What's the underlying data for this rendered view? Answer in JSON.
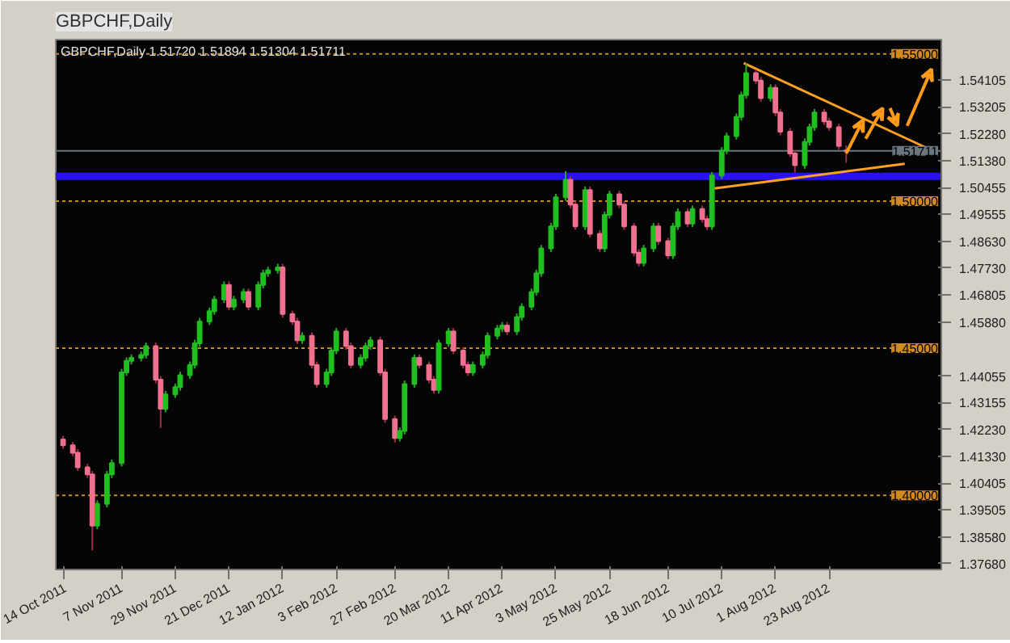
{
  "chart_data": {
    "type": "candlestick",
    "title": "GBPCHF,Daily",
    "subtitle": "GBPCHF,Daily  1.51720 1.51894 1.51304 1.51711",
    "x": [
      "2011-10-14",
      "2011-10-18",
      "2011-10-20",
      "2011-10-24",
      "2011-10-26",
      "2011-10-28",
      "2011-11-01",
      "2011-11-03",
      "2011-11-07",
      "2011-11-09",
      "2011-11-11",
      "2011-11-15",
      "2011-11-17",
      "2011-11-21",
      "2011-11-23",
      "2011-11-25",
      "2011-11-29",
      "2011-12-01",
      "2011-12-05",
      "2011-12-07",
      "2011-12-09",
      "2011-12-13",
      "2011-12-15",
      "2011-12-19",
      "2011-12-21",
      "2011-12-23",
      "2011-12-27",
      "2011-12-29",
      "2012-01-02",
      "2012-01-04",
      "2012-01-06",
      "2012-01-10",
      "2012-01-12",
      "2012-01-16",
      "2012-01-18",
      "2012-01-20",
      "2012-01-24",
      "2012-01-26",
      "2012-01-30",
      "2012-02-01",
      "2012-02-03",
      "2012-02-07",
      "2012-02-09",
      "2012-02-13",
      "2012-02-15",
      "2012-02-17",
      "2012-02-21",
      "2012-02-23",
      "2012-02-27",
      "2012-02-29",
      "2012-03-02",
      "2012-03-06",
      "2012-03-08",
      "2012-03-12",
      "2012-03-14",
      "2012-03-16",
      "2012-03-20",
      "2012-03-22",
      "2012-03-26",
      "2012-03-28",
      "2012-03-30",
      "2012-04-03",
      "2012-04-05",
      "2012-04-09",
      "2012-04-11",
      "2012-04-13",
      "2012-04-17",
      "2012-04-19",
      "2012-04-23",
      "2012-04-25",
      "2012-04-27",
      "2012-05-01",
      "2012-05-03",
      "2012-05-07",
      "2012-05-09",
      "2012-05-11",
      "2012-05-15",
      "2012-05-17",
      "2012-05-21",
      "2012-05-23",
      "2012-05-25",
      "2012-05-29",
      "2012-05-31",
      "2012-06-04",
      "2012-06-06",
      "2012-06-08",
      "2012-06-12",
      "2012-06-14",
      "2012-06-18",
      "2012-06-20",
      "2012-06-22",
      "2012-06-26",
      "2012-06-28",
      "2012-07-02",
      "2012-07-04",
      "2012-07-06",
      "2012-07-10",
      "2012-07-12",
      "2012-07-16",
      "2012-07-18",
      "2012-07-20",
      "2012-07-24",
      "2012-07-26",
      "2012-07-30",
      "2012-08-01",
      "2012-08-03",
      "2012-08-07",
      "2012-08-09",
      "2012-08-13",
      "2012-08-15",
      "2012-08-17",
      "2012-08-21",
      "2012-08-23",
      "2012-08-27",
      "2012-08-30"
    ],
    "ohlc": [
      [
        1.419,
        1.4202,
        1.4158,
        1.417
      ],
      [
        1.417,
        1.4182,
        1.4133,
        1.4145
      ],
      [
        1.4145,
        1.4157,
        1.4083,
        1.4095
      ],
      [
        1.4095,
        1.4107,
        1.4059,
        1.4071
      ],
      [
        1.4071,
        1.4083,
        1.3813,
        1.3897
      ],
      [
        1.3897,
        1.3983,
        1.3885,
        1.3971
      ],
      [
        1.3971,
        1.4083,
        1.3959,
        1.4071
      ],
      [
        1.4071,
        1.4122,
        1.4059,
        1.411
      ],
      [
        1.411,
        1.443,
        1.4098,
        1.4418
      ],
      [
        1.4418,
        1.4469,
        1.4406,
        1.4457
      ],
      [
        1.4457,
        1.4479,
        1.4445,
        1.4467
      ],
      [
        1.4467,
        1.4489,
        1.4455,
        1.4477
      ],
      [
        1.4477,
        1.4519,
        1.4465,
        1.4507
      ],
      [
        1.4507,
        1.4519,
        1.4381,
        1.4393
      ],
      [
        1.4393,
        1.4405,
        1.4229,
        1.4294
      ],
      [
        1.4294,
        1.4355,
        1.4282,
        1.4343
      ],
      [
        1.4343,
        1.438,
        1.4331,
        1.4368
      ],
      [
        1.4368,
        1.442,
        1.4356,
        1.4408
      ],
      [
        1.4408,
        1.4455,
        1.4396,
        1.4443
      ],
      [
        1.4443,
        1.4529,
        1.4431,
        1.4517
      ],
      [
        1.4517,
        1.4603,
        1.4505,
        1.4591
      ],
      [
        1.4591,
        1.4638,
        1.4579,
        1.4626
      ],
      [
        1.4626,
        1.4678,
        1.4614,
        1.4666
      ],
      [
        1.4666,
        1.4727,
        1.4654,
        1.4715
      ],
      [
        1.4715,
        1.4727,
        1.4629,
        1.4641
      ],
      [
        1.4641,
        1.4678,
        1.4629,
        1.4666
      ],
      [
        1.4666,
        1.4703,
        1.4654,
        1.4691
      ],
      [
        1.4691,
        1.4703,
        1.4629,
        1.4641
      ],
      [
        1.4641,
        1.4727,
        1.4629,
        1.4715
      ],
      [
        1.4715,
        1.4767,
        1.4703,
        1.4755
      ],
      [
        1.4755,
        1.4777,
        1.4743,
        1.4765
      ],
      [
        1.4765,
        1.4787,
        1.4753,
        1.4775
      ],
      [
        1.4775,
        1.4787,
        1.4604,
        1.4616
      ],
      [
        1.4616,
        1.4628,
        1.4579,
        1.4591
      ],
      [
        1.4591,
        1.4603,
        1.4515,
        1.4527
      ],
      [
        1.4527,
        1.4554,
        1.4515,
        1.4542
      ],
      [
        1.4542,
        1.4554,
        1.4431,
        1.4443
      ],
      [
        1.4443,
        1.4455,
        1.4366,
        1.4378
      ],
      [
        1.4378,
        1.443,
        1.4366,
        1.4418
      ],
      [
        1.4418,
        1.4504,
        1.4406,
        1.4492
      ],
      [
        1.4492,
        1.4569,
        1.448,
        1.4557
      ],
      [
        1.4557,
        1.4569,
        1.4495,
        1.4507
      ],
      [
        1.4507,
        1.4519,
        1.4431,
        1.4443
      ],
      [
        1.4443,
        1.4479,
        1.4431,
        1.4467
      ],
      [
        1.4467,
        1.4519,
        1.4455,
        1.4507
      ],
      [
        1.4507,
        1.4539,
        1.4495,
        1.4527
      ],
      [
        1.4527,
        1.4539,
        1.4406,
        1.4418
      ],
      [
        1.4418,
        1.443,
        1.4247,
        1.4259
      ],
      [
        1.4259,
        1.4271,
        1.418,
        1.4195
      ],
      [
        1.4195,
        1.4231,
        1.4183,
        1.4219
      ],
      [
        1.4219,
        1.439,
        1.4207,
        1.4378
      ],
      [
        1.4378,
        1.4479,
        1.4366,
        1.4467
      ],
      [
        1.4467,
        1.4479,
        1.4431,
        1.4443
      ],
      [
        1.4443,
        1.4455,
        1.4381,
        1.4393
      ],
      [
        1.4393,
        1.4405,
        1.4346,
        1.4358
      ],
      [
        1.4358,
        1.4529,
        1.4346,
        1.4517
      ],
      [
        1.4517,
        1.4569,
        1.4505,
        1.4557
      ],
      [
        1.4557,
        1.4569,
        1.448,
        1.4492
      ],
      [
        1.4492,
        1.4504,
        1.4431,
        1.4443
      ],
      [
        1.4443,
        1.4455,
        1.4406,
        1.4418
      ],
      [
        1.4418,
        1.4455,
        1.4406,
        1.4443
      ],
      [
        1.4443,
        1.4489,
        1.4431,
        1.4477
      ],
      [
        1.4477,
        1.4554,
        1.4465,
        1.4542
      ],
      [
        1.4542,
        1.4579,
        1.453,
        1.4567
      ],
      [
        1.4567,
        1.4589,
        1.4555,
        1.4577
      ],
      [
        1.4577,
        1.4589,
        1.4545,
        1.4557
      ],
      [
        1.4557,
        1.4618,
        1.4545,
        1.4606
      ],
      [
        1.4606,
        1.4653,
        1.4594,
        1.4641
      ],
      [
        1.4641,
        1.4703,
        1.4629,
        1.4691
      ],
      [
        1.4691,
        1.4767,
        1.4679,
        1.4755
      ],
      [
        1.4755,
        1.4851,
        1.4743,
        1.4839
      ],
      [
        1.4839,
        1.4926,
        1.4827,
        1.4914
      ],
      [
        1.4914,
        1.5025,
        1.4902,
        1.5013
      ],
      [
        1.5013,
        1.5102,
        1.5001,
        1.5073
      ],
      [
        1.5073,
        1.5085,
        1.4976,
        1.4988
      ],
      [
        1.4988,
        1.5,
        1.4902,
        1.4914
      ],
      [
        1.4914,
        1.505,
        1.4902,
        1.5038
      ],
      [
        1.5038,
        1.505,
        1.4877,
        1.4889
      ],
      [
        1.4889,
        1.4901,
        1.4827,
        1.4839
      ],
      [
        1.4839,
        1.4965,
        1.4827,
        1.4953
      ],
      [
        1.4953,
        1.5035,
        1.4941,
        1.5023
      ],
      [
        1.5023,
        1.5035,
        1.4976,
        1.4988
      ],
      [
        1.4988,
        1.5,
        1.4902,
        1.4914
      ],
      [
        1.4914,
        1.4926,
        1.4813,
        1.4825
      ],
      [
        1.4825,
        1.4837,
        1.4778,
        1.479
      ],
      [
        1.479,
        1.4851,
        1.4778,
        1.4839
      ],
      [
        1.4839,
        1.4926,
        1.4827,
        1.4914
      ],
      [
        1.4914,
        1.4926,
        1.4852,
        1.4864
      ],
      [
        1.4864,
        1.4876,
        1.4803,
        1.4815
      ],
      [
        1.4815,
        1.4926,
        1.4803,
        1.4914
      ],
      [
        1.4914,
        1.4975,
        1.4902,
        1.4963
      ],
      [
        1.4963,
        1.4975,
        1.4912,
        1.4924
      ],
      [
        1.4924,
        1.4985,
        1.4912,
        1.4973
      ],
      [
        1.4973,
        1.4985,
        1.4927,
        1.4939
      ],
      [
        1.4939,
        1.4951,
        1.4902,
        1.4914
      ],
      [
        1.4914,
        1.5099,
        1.4902,
        1.5087
      ],
      [
        1.5087,
        1.5184,
        1.5075,
        1.5172
      ],
      [
        1.5172,
        1.5233,
        1.516,
        1.5221
      ],
      [
        1.5221,
        1.5298,
        1.5209,
        1.5286
      ],
      [
        1.5286,
        1.5372,
        1.5274,
        1.536
      ],
      [
        1.536,
        1.5469,
        1.5348,
        1.5435
      ],
      [
        1.5435,
        1.5447,
        1.5398,
        1.541
      ],
      [
        1.541,
        1.5422,
        1.5338,
        1.535
      ],
      [
        1.535,
        1.5397,
        1.5338,
        1.5385
      ],
      [
        1.5385,
        1.5397,
        1.5289,
        1.5301
      ],
      [
        1.5301,
        1.5313,
        1.5224,
        1.5236
      ],
      [
        1.5236,
        1.5248,
        1.515,
        1.5162
      ],
      [
        1.5162,
        1.5174,
        1.5097,
        1.5122
      ],
      [
        1.5122,
        1.5213,
        1.511,
        1.5201
      ],
      [
        1.5201,
        1.5263,
        1.5189,
        1.5251
      ],
      [
        1.5251,
        1.5313,
        1.5239,
        1.5301
      ],
      [
        1.5301,
        1.5313,
        1.5259,
        1.5271
      ],
      [
        1.5271,
        1.5283,
        1.5239,
        1.5251
      ],
      [
        1.5251,
        1.5263,
        1.5175,
        1.5187
      ],
      [
        1.5172,
        1.51894,
        1.51304,
        1.51711
      ]
    ],
    "series": [
      {
        "type": "line",
        "color": "#ffa020",
        "x": [
          "2012-07-19",
          "2012-10-03"
        ],
        "values": [
          1.5469,
          1.5177
        ]
      },
      {
        "type": "line",
        "color": "#ffa020",
        "x": [
          "2012-07-07",
          "2012-09-23"
        ],
        "values": [
          1.5043,
          1.5127
        ]
      }
    ],
    "bands": [
      {
        "axis": "y",
        "from": 1.5072,
        "to": 1.5097,
        "color": "#2b10f0"
      }
    ],
    "ref_lines": [
      {
        "axis": "y",
        "value": 1.55,
        "label": "1.55000",
        "color": "#d08a20",
        "line_style": "dotted"
      },
      {
        "axis": "y",
        "value": 1.5,
        "label": "1.50000",
        "color": "#d08a20",
        "line_style": "dotted"
      },
      {
        "axis": "y",
        "value": 1.45,
        "label": "1.45000",
        "color": "#d08a20",
        "line_style": "dotted"
      },
      {
        "axis": "y",
        "value": 1.4,
        "label": "1.40000",
        "color": "#d08a20",
        "line_style": "dotted"
      },
      {
        "axis": "y",
        "value": 1.51711,
        "label": "1.51711",
        "color": "#6d7580",
        "line_style": "solid"
      }
    ],
    "xlim": [
      "2011-10-11",
      "2012-10-08"
    ],
    "xticks": [
      {
        "value": "2011-10-14",
        "label": "14 Oct 2011"
      },
      {
        "value": "2011-11-07",
        "label": "7 Nov 2011"
      },
      {
        "value": "2011-11-29",
        "label": "29 Nov 2011"
      },
      {
        "value": "2011-12-21",
        "label": "21 Dec 2011"
      },
      {
        "value": "2012-01-12",
        "label": "12 Jan 2012"
      },
      {
        "value": "2012-02-03",
        "label": "3 Feb 2012"
      },
      {
        "value": "2012-02-27",
        "label": "27 Feb 2012"
      },
      {
        "value": "2012-03-20",
        "label": "20 Mar 2012"
      },
      {
        "value": "2012-04-11",
        "label": "11 Apr 2012"
      },
      {
        "value": "2012-05-03",
        "label": "3 May 2012"
      },
      {
        "value": "2012-05-25",
        "label": "25 May 2012"
      },
      {
        "value": "2012-06-18",
        "label": "18 Jun 2012"
      },
      {
        "value": "2012-07-10",
        "label": "10 Jul 2012"
      },
      {
        "value": "2012-08-01",
        "label": "1 Aug 2012"
      },
      {
        "value": "2012-08-23",
        "label": "23 Aug 2012"
      }
    ],
    "ylim": [
      1.3748,
      1.5549
    ],
    "yticks": [
      {
        "value": 1.3768,
        "label": "1.37680"
      },
      {
        "value": 1.3858,
        "label": "1.38580"
      },
      {
        "value": 1.39505,
        "label": "1.39505"
      },
      {
        "value": 1.40405,
        "label": "1.40405"
      },
      {
        "value": 1.4133,
        "label": "1.41330"
      },
      {
        "value": 1.4223,
        "label": "1.42230"
      },
      {
        "value": 1.43155,
        "label": "1.43155"
      },
      {
        "value": 1.44055,
        "label": "1.44055"
      },
      {
        "value": 1.4588,
        "label": "1.45880"
      },
      {
        "value": 1.46805,
        "label": "1.46805"
      },
      {
        "value": 1.4773,
        "label": "1.47730"
      },
      {
        "value": 1.4863,
        "label": "1.48630"
      },
      {
        "value": 1.49555,
        "label": "1.49555"
      },
      {
        "value": 1.50455,
        "label": "1.50455"
      },
      {
        "value": 1.5138,
        "label": "1.51380"
      },
      {
        "value": 1.5228,
        "label": "1.52280"
      },
      {
        "value": 1.53205,
        "label": "1.53205"
      },
      {
        "value": 1.54105,
        "label": "1.54105"
      }
    ]
  }
}
